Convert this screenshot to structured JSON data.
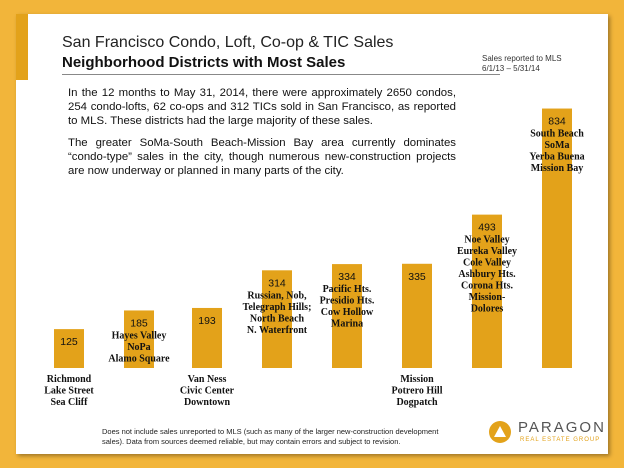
{
  "header": {
    "title": "San Francisco Condo, Loft, Co-op & TIC Sales",
    "subtitle": "Neighborhood Districts with Most Sales",
    "note_line1": "Sales reported to MLS",
    "note_line2": "6/1/13 – 5/31/14"
  },
  "intro": {
    "paragraph1": "In the 12 months to May 31, 2014, there were approximately 2650 condos, 254 condo-lofts, 62 co-ops and 312 TICs sold in San Francisco, as reported to MLS. These districts had the large majority of these sales.",
    "paragraph2": "The greater SoMa-South Beach-Mission Bay area currently dominates “condo-type” sales in the city, though numerous new-construction projects are now underway or planned in many parts of the city."
  },
  "footnote": "Does not include sales unreported to MLS (such as many of the larger new-construction development sales). Data from sources deemed reliable, but may contain errors and subject to revision.",
  "logo": {
    "name": "PARAGON",
    "tagline": "REAL ESTATE GROUP"
  },
  "colors": {
    "bar": "#e3a21a",
    "background": "#f2b53a",
    "accent": "#e3a21a"
  },
  "chart_data": {
    "type": "bar",
    "ylim": [
      0,
      900
    ],
    "categories": [
      [
        "Richmond",
        "Lake Street",
        "Sea Cliff"
      ],
      [
        "Hayes Valley",
        "NoPa",
        "Alamo Square"
      ],
      [
        "Van Ness",
        "Civic Center",
        "Downtown"
      ],
      [
        "Russian, Nob,",
        "Telegraph Hills;",
        "North Beach",
        "N. Waterfront"
      ],
      [
        "Pacific Hts.",
        "Presidio Hts.",
        "Cow Hollow",
        "Marina"
      ],
      [
        "Mission",
        "Potrero Hill",
        "Dogpatch"
      ],
      [
        "Noe Valley",
        "Eureka Valley",
        "Cole Valley",
        "Ashbury Hts.",
        "Corona Hts.",
        "Mission-",
        "Dolores"
      ],
      [
        "South Beach",
        "SoMa",
        "Yerba Buena",
        "Mission Bay"
      ]
    ],
    "values": [
      125,
      185,
      193,
      314,
      334,
      335,
      493,
      834
    ],
    "value_labels": [
      "125",
      "185",
      "193",
      "314",
      "334",
      "335",
      "493",
      "834"
    ],
    "category_label_position": [
      "below",
      "above",
      "below",
      "above",
      "above",
      "below",
      "above",
      "above"
    ]
  }
}
